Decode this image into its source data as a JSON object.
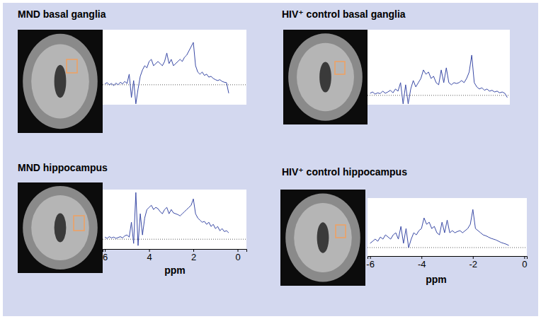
{
  "chart_data": [
    {
      "type": "line",
      "title": "MND basal ganglia",
      "color": "#3a4aa6",
      "tick_labels": false,
      "grid": true,
      "xlim": [
        6.1,
        -0.4
      ],
      "ylim": [
        -0.47,
        1.3
      ],
      "yticks": [
        0
      ],
      "x": [
        6.0,
        5.9,
        5.8,
        5.7,
        5.6,
        5.5,
        5.4,
        5.3,
        5.2,
        5.1,
        5.0,
        4.9,
        4.8,
        4.7,
        4.6,
        4.5,
        4.4,
        4.3,
        4.2,
        4.1,
        4.0,
        3.9,
        3.8,
        3.7,
        3.6,
        3.5,
        3.4,
        3.3,
        3.2,
        3.1,
        3.0,
        2.9,
        2.8,
        2.7,
        2.6,
        2.5,
        2.4,
        2.3,
        2.2,
        2.1,
        2.0,
        1.9,
        1.8,
        1.7,
        1.6,
        1.5,
        1.4,
        1.3,
        1.2,
        1.1,
        1.0,
        0.9,
        0.8,
        0.7,
        0.6,
        0.5,
        0.4
      ],
      "values": [
        0.02,
        0.05,
        0.0,
        0.03,
        -0.02,
        0.04,
        0.0,
        0.06,
        0.02,
        0.08,
        0.03,
        0.25,
        -0.3,
        0.1,
        -0.45,
        -0.1,
        0.2,
        0.35,
        0.45,
        0.4,
        0.55,
        0.6,
        0.45,
        0.5,
        0.55,
        0.5,
        0.45,
        0.55,
        0.75,
        0.5,
        0.6,
        0.45,
        0.5,
        0.55,
        0.6,
        0.55,
        0.65,
        0.7,
        0.8,
        0.9,
        1.0,
        0.45,
        0.3,
        0.25,
        0.3,
        0.22,
        0.25,
        0.18,
        0.2,
        0.15,
        0.12,
        0.1,
        0.12,
        0.08,
        0.06,
        0.05,
        -0.2
      ]
    },
    {
      "type": "line",
      "title": "HIV⁺ control basal ganglia",
      "color": "#3a4aa6",
      "tick_labels": false,
      "grid": true,
      "xlim": [
        -6.1,
        -0.5
      ],
      "ylim": [
        -0.22,
        1.55
      ],
      "yticks": [
        0
      ],
      "x": [
        -6.0,
        -5.9,
        -5.8,
        -5.7,
        -5.6,
        -5.5,
        -5.4,
        -5.3,
        -5.2,
        -5.1,
        -5.0,
        -4.9,
        -4.8,
        -4.7,
        -4.6,
        -4.5,
        -4.4,
        -4.3,
        -4.2,
        -4.1,
        -4.0,
        -3.9,
        -3.8,
        -3.7,
        -3.6,
        -3.5,
        -3.4,
        -3.3,
        -3.2,
        -3.1,
        -3.0,
        -2.9,
        -2.8,
        -2.7,
        -2.6,
        -2.5,
        -2.4,
        -2.3,
        -2.2,
        -2.1,
        -2.0,
        -1.9,
        -1.8,
        -1.7,
        -1.6,
        -1.5,
        -1.4,
        -1.3,
        -1.2,
        -1.1,
        -1.0,
        -0.9,
        -0.8,
        -0.7,
        -0.6
      ],
      "values": [
        0.05,
        0.08,
        0.03,
        0.06,
        0.04,
        0.1,
        0.05,
        0.08,
        0.12,
        0.06,
        0.15,
        0.1,
        0.3,
        -0.2,
        0.25,
        -0.2,
        0.15,
        0.35,
        0.2,
        0.3,
        0.4,
        0.6,
        0.5,
        0.55,
        0.4,
        0.45,
        0.3,
        0.25,
        0.6,
        0.3,
        0.65,
        0.3,
        0.25,
        0.3,
        0.28,
        0.3,
        0.35,
        0.3,
        0.4,
        0.55,
        0.95,
        0.3,
        0.2,
        0.15,
        0.18,
        0.12,
        0.15,
        0.1,
        0.12,
        0.08,
        0.1,
        0.06,
        0.08,
        0.05,
        -0.05
      ]
    },
    {
      "type": "line",
      "title": "MND hippocampus",
      "color": "#3a4aa6",
      "tick_labels": "x",
      "grid": true,
      "xlabel": "ppm",
      "xlim": [
        6.1,
        -0.4
      ],
      "ylim": [
        -0.23,
        1.17
      ],
      "xticks": [
        6,
        4,
        2,
        0
      ],
      "yticks": [
        0
      ],
      "x": [
        6.0,
        5.9,
        5.8,
        5.7,
        5.6,
        5.5,
        5.4,
        5.3,
        5.2,
        5.1,
        5.0,
        4.9,
        4.8,
        4.7,
        4.6,
        4.5,
        4.4,
        4.3,
        4.2,
        4.1,
        4.0,
        3.9,
        3.8,
        3.7,
        3.6,
        3.5,
        3.4,
        3.3,
        3.2,
        3.1,
        3.0,
        2.9,
        2.8,
        2.7,
        2.6,
        2.5,
        2.4,
        2.3,
        2.2,
        2.1,
        2.0,
        1.9,
        1.8,
        1.7,
        1.6,
        1.5,
        1.4,
        1.3,
        1.2,
        1.1,
        1.0,
        0.9,
        0.8,
        0.7,
        0.6,
        0.5,
        0.4
      ],
      "values": [
        0.05,
        0.02,
        0.06,
        0.03,
        0.05,
        0.02,
        0.04,
        0.06,
        0.03,
        0.08,
        0.1,
        0.05,
        0.4,
        -0.1,
        1.1,
        -0.15,
        0.6,
        0.1,
        0.5,
        0.7,
        0.75,
        0.8,
        0.7,
        0.75,
        0.72,
        0.65,
        0.6,
        0.7,
        0.75,
        0.6,
        0.7,
        0.62,
        0.6,
        0.58,
        0.55,
        0.6,
        0.65,
        0.7,
        0.75,
        0.8,
        0.95,
        0.6,
        0.5,
        0.45,
        0.4,
        0.42,
        0.35,
        0.4,
        0.3,
        0.35,
        0.25,
        0.3,
        0.2,
        0.25,
        0.18,
        0.2,
        0.15
      ]
    },
    {
      "type": "line",
      "title": "HIV⁺ control hippocampus",
      "color": "#3a4aa6",
      "tick_labels": "x",
      "grid": true,
      "xlabel": "ppm",
      "xlim": [
        -6.1,
        0.1
      ],
      "ylim": [
        -0.2,
        1.17
      ],
      "xticks": [
        -6,
        -4,
        -2,
        0
      ],
      "yticks": [
        0
      ],
      "x": [
        -6.0,
        -5.9,
        -5.8,
        -5.7,
        -5.6,
        -5.5,
        -5.4,
        -5.3,
        -5.2,
        -5.1,
        -5.0,
        -4.9,
        -4.8,
        -4.7,
        -4.6,
        -4.5,
        -4.4,
        -4.3,
        -4.2,
        -4.1,
        -4.0,
        -3.9,
        -3.8,
        -3.7,
        -3.6,
        -3.5,
        -3.4,
        -3.3,
        -3.2,
        -3.1,
        -3.0,
        -2.9,
        -2.8,
        -2.7,
        -2.6,
        -2.5,
        -2.4,
        -2.3,
        -2.2,
        -2.1,
        -2.0,
        -1.9,
        -1.8,
        -1.7,
        -1.6,
        -1.5,
        -1.4,
        -1.3,
        -1.2,
        -1.1,
        -1.0,
        -0.9,
        -0.8,
        -0.7,
        -0.6
      ],
      "values": [
        0.1,
        0.15,
        0.2,
        0.15,
        0.25,
        0.2,
        0.3,
        0.25,
        0.2,
        0.3,
        0.35,
        0.2,
        0.5,
        0.1,
        0.45,
        0.0,
        0.2,
        0.35,
        0.3,
        0.4,
        0.45,
        0.7,
        0.55,
        0.6,
        0.45,
        0.5,
        0.35,
        0.3,
        0.6,
        0.35,
        0.65,
        0.35,
        0.4,
        0.35,
        0.38,
        0.4,
        0.35,
        0.4,
        0.45,
        0.55,
        0.9,
        0.45,
        0.4,
        0.35,
        0.3,
        0.28,
        0.25,
        0.22,
        0.2,
        0.18,
        0.15,
        0.12,
        0.1,
        0.08,
        0.05
      ]
    }
  ]
}
